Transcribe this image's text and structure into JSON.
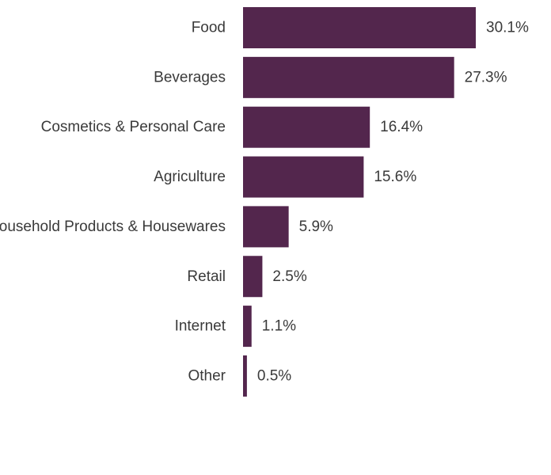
{
  "chart_data": {
    "type": "bar",
    "orientation": "horizontal",
    "title": "",
    "xlabel": "",
    "ylabel": "",
    "categories": [
      "Food",
      "Beverages",
      "Cosmetics & Personal Care",
      "Agriculture",
      "Household Products & Housewares",
      "Retail",
      "Internet",
      "Other"
    ],
    "values": [
      30.1,
      27.3,
      16.4,
      15.6,
      5.9,
      2.5,
      1.1,
      0.5
    ],
    "value_labels": [
      "30.1%",
      "27.3%",
      "16.4%",
      "15.6%",
      "5.9%",
      "2.5%",
      "1.1%",
      "0.5%"
    ],
    "unit": "%",
    "xlim": [
      0,
      30.1
    ],
    "grid": false,
    "legend": "none",
    "bar_color": "#53264d"
  }
}
